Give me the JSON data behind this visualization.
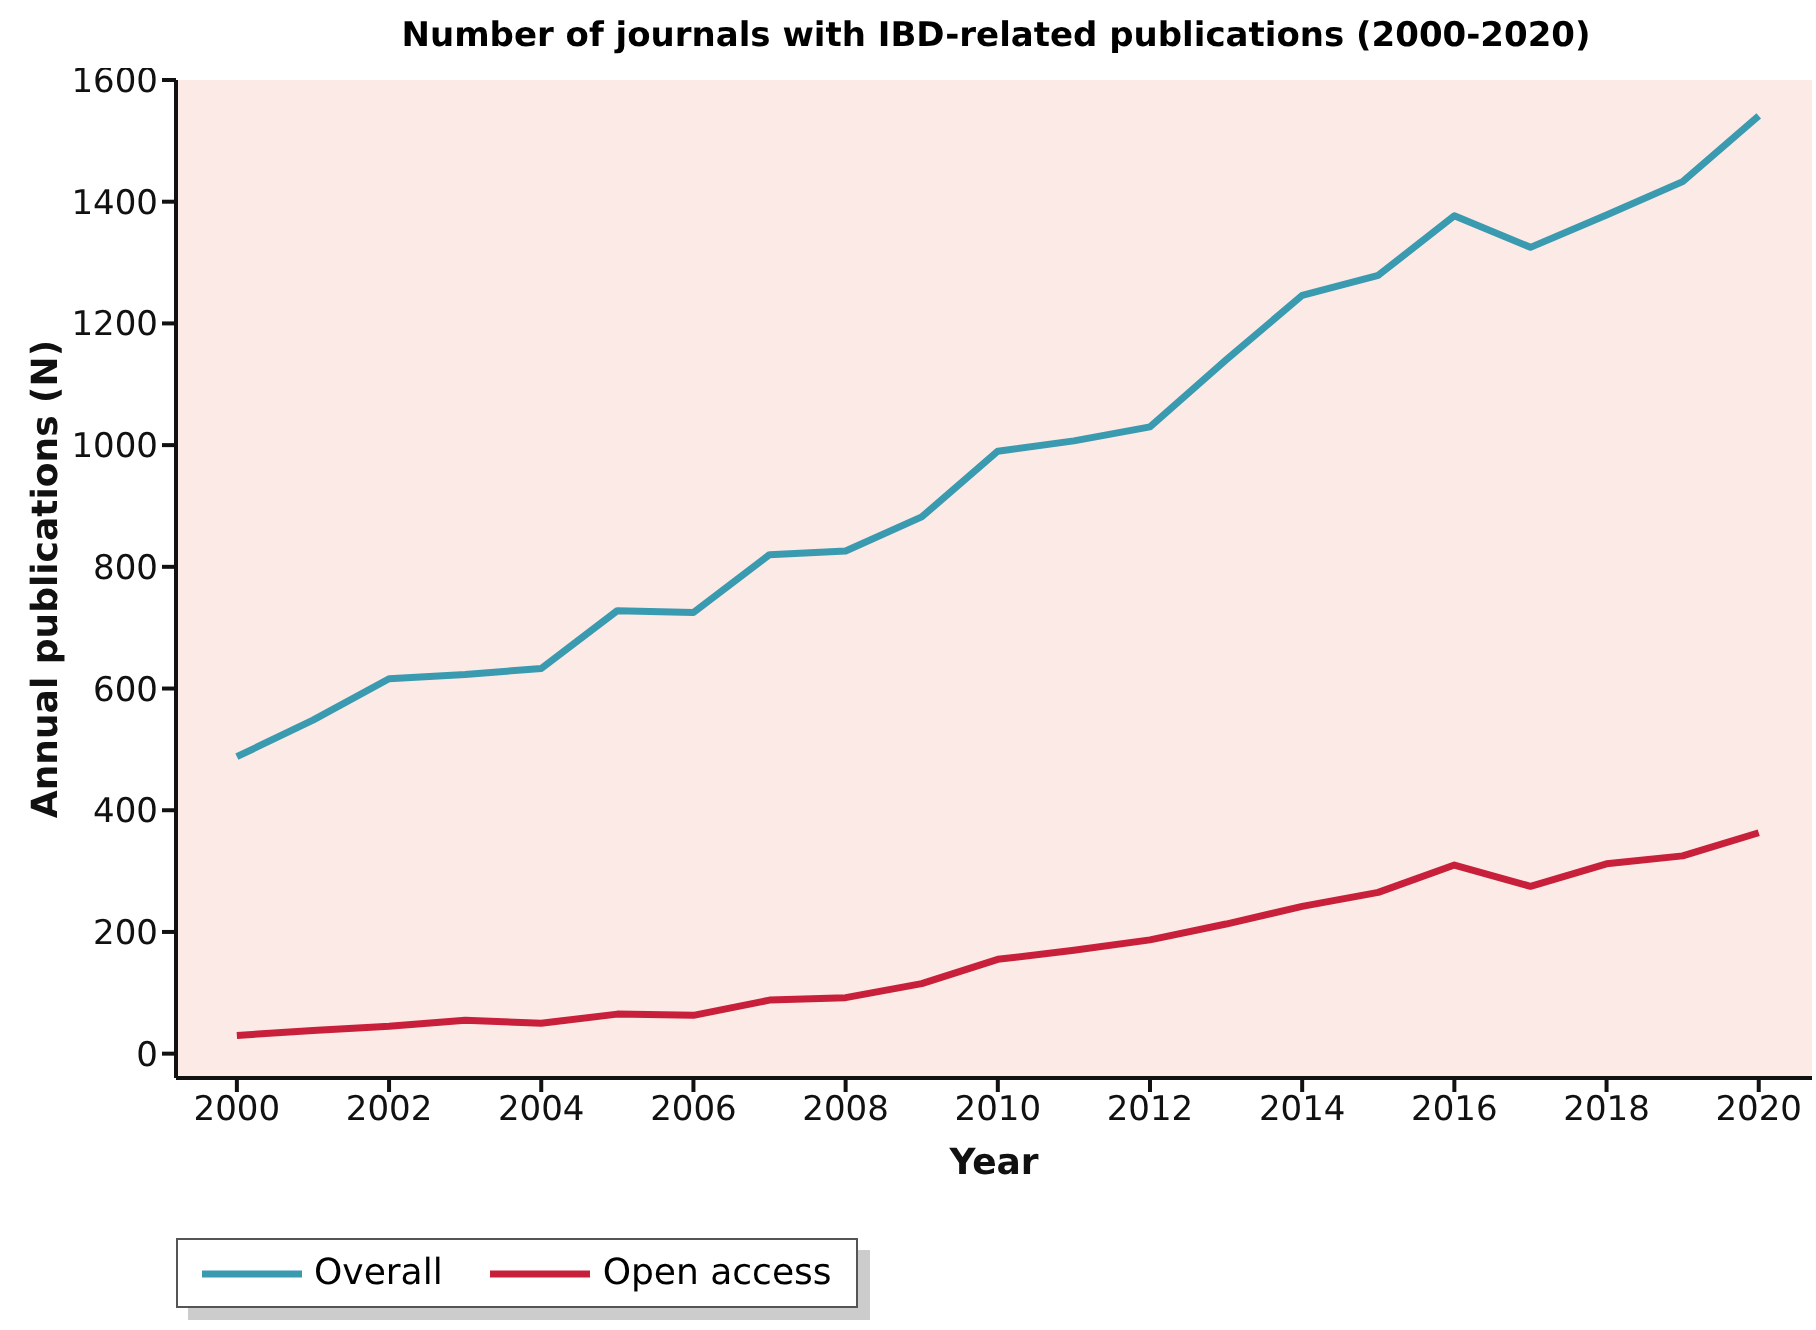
{
  "chart_data": {
    "type": "line",
    "title": "Number of journals with IBD-related publications (2000-2020)",
    "xlabel": "Year",
    "ylabel": "Annual publications (N)",
    "x": [
      2000,
      2001,
      2002,
      2003,
      2004,
      2005,
      2006,
      2007,
      2008,
      2009,
      2010,
      2011,
      2012,
      2013,
      2014,
      2015,
      2016,
      2017,
      2018,
      2019,
      2020
    ],
    "series": [
      {
        "name": "Overall",
        "color": "#3a9ab0",
        "values": [
          488,
          548,
          616,
          623,
          633,
          728,
          725,
          820,
          826,
          882,
          990,
          1007,
          1030,
          1140,
          1246,
          1279,
          1377,
          1325,
          1378,
          1433,
          1541
        ]
      },
      {
        "name": "Open access",
        "color": "#c8203a",
        "values": [
          30,
          38,
          45,
          55,
          50,
          65,
          63,
          88,
          92,
          115,
          155,
          170,
          187,
          213,
          242,
          265,
          310,
          275,
          312,
          325,
          363
        ]
      }
    ],
    "xlim": [
      1999.2,
      2020.7
    ],
    "xticks": [
      2000,
      2002,
      2004,
      2006,
      2008,
      2010,
      2012,
      2014,
      2016,
      2018,
      2020
    ],
    "ylim": [
      -40,
      1600
    ],
    "yticks": [
      0,
      200,
      400,
      600,
      800,
      1000,
      1200,
      1400,
      1600
    ],
    "grid": false,
    "legend": "bottom left",
    "marker": "none",
    "line_style": "solid"
  }
}
